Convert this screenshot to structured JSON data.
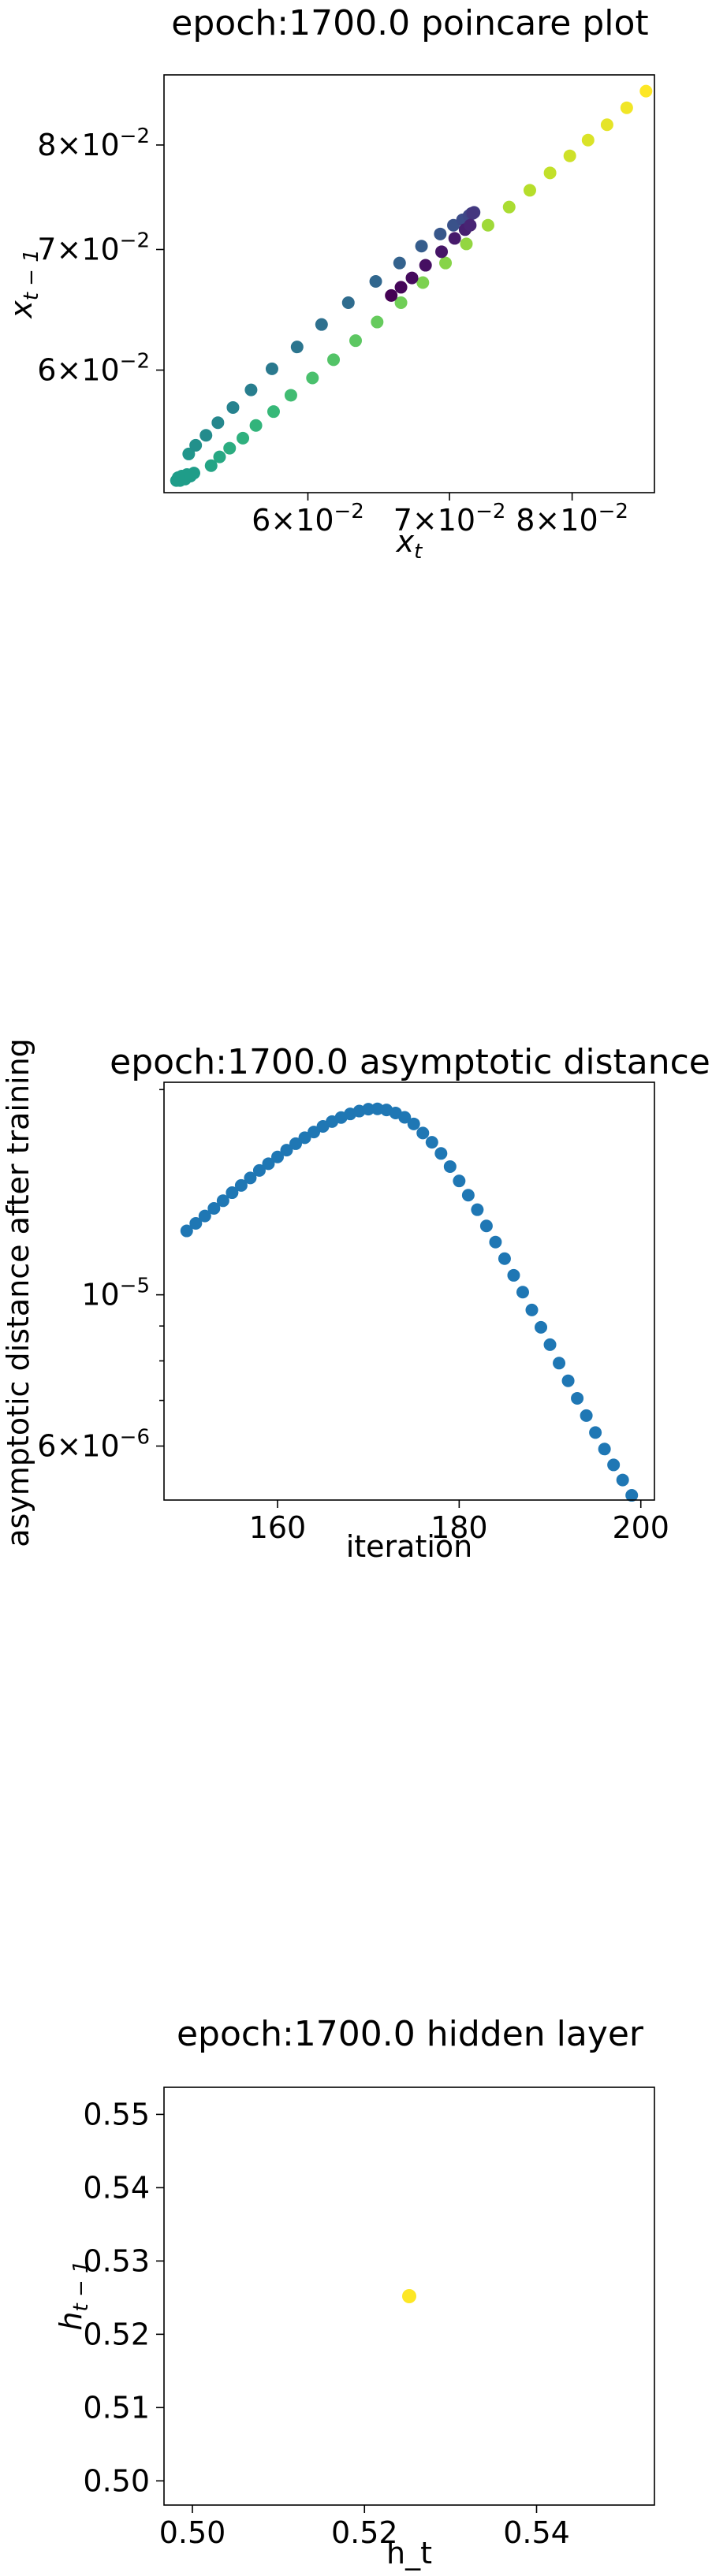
{
  "chart_data": [
    {
      "type": "scatter",
      "title": "epoch:1700.0 poincare plot",
      "xlabel": "x_t",
      "ylabel": "x_{t-1}",
      "xscale": "log",
      "yscale": "log",
      "xlim": [
        0.0513,
        0.0875
      ],
      "ylim": [
        0.0513,
        0.0875
      ],
      "xticks": [
        {
          "v": 0.06,
          "label": "6×10^-2"
        },
        {
          "v": 0.07,
          "label": "7×10^-2"
        },
        {
          "v": 0.08,
          "label": "8×10^-2"
        }
      ],
      "yticks": [
        {
          "v": 0.06,
          "label": "6×10^-2"
        },
        {
          "v": 0.07,
          "label": "7×10^-2"
        },
        {
          "v": 0.08,
          "label": "8×10^-2"
        }
      ],
      "colormap": "viridis",
      "points_lower_branch": [
        [
          0.054,
          0.0531
        ],
        [
          0.0545,
          0.0537
        ],
        [
          0.0551,
          0.0543
        ],
        [
          0.0559,
          0.055
        ],
        [
          0.0567,
          0.0559
        ],
        [
          0.0578,
          0.0569
        ],
        [
          0.0589,
          0.0581
        ],
        [
          0.0603,
          0.0594
        ],
        [
          0.0617,
          0.0608
        ],
        [
          0.0632,
          0.0623
        ],
        [
          0.0647,
          0.0638
        ],
        [
          0.0664,
          0.0654
        ],
        [
          0.068,
          0.0671
        ],
        [
          0.0697,
          0.0688
        ],
        [
          0.0713,
          0.0705
        ],
        [
          0.073,
          0.0722
        ],
        [
          0.0747,
          0.0739
        ],
        [
          0.0764,
          0.0755
        ],
        [
          0.0781,
          0.0772
        ],
        [
          0.0798,
          0.0789
        ],
        [
          0.0814,
          0.0805
        ],
        [
          0.0831,
          0.0821
        ],
        [
          0.0849,
          0.0839
        ],
        [
          0.0867,
          0.0857
        ]
      ],
      "points_upper_branch": [
        [
          0.0527,
          0.0539
        ],
        [
          0.0531,
          0.0545
        ],
        [
          0.0537,
          0.0552
        ],
        [
          0.0544,
          0.0561
        ],
        [
          0.0553,
          0.0572
        ],
        [
          0.0564,
          0.0585
        ],
        [
          0.0577,
          0.0601
        ],
        [
          0.0593,
          0.0618
        ],
        [
          0.0609,
          0.0636
        ],
        [
          0.0627,
          0.0654
        ],
        [
          0.0646,
          0.0672
        ],
        [
          0.0663,
          0.0688
        ],
        [
          0.0679,
          0.0703
        ],
        [
          0.0693,
          0.0714
        ],
        [
          0.0703,
          0.0722
        ],
        [
          0.071,
          0.0727
        ],
        [
          0.0715,
          0.0731
        ],
        [
          0.0717,
          0.0733
        ],
        [
          0.0719,
          0.0734
        ],
        [
          0.0718,
          0.0733
        ]
      ],
      "points_dark_cluster": [
        [
          0.0657,
          0.066
        ],
        [
          0.0664,
          0.0667
        ],
        [
          0.0672,
          0.0675
        ],
        [
          0.0682,
          0.0686
        ],
        [
          0.0694,
          0.0698
        ],
        [
          0.0704,
          0.071
        ],
        [
          0.0712,
          0.0718
        ],
        [
          0.0716,
          0.0722
        ]
      ],
      "points_start_cluster": [
        [
          0.052,
          0.0521
        ],
        [
          0.0521,
          0.0523
        ],
        [
          0.0522,
          0.0521
        ],
        [
          0.0523,
          0.0524
        ],
        [
          0.0525,
          0.0522
        ],
        [
          0.0526,
          0.0525
        ],
        [
          0.0528,
          0.0524
        ],
        [
          0.053,
          0.0526
        ]
      ]
    },
    {
      "type": "scatter",
      "title": "epoch:1700.0 asymptotic distance",
      "xlabel": "iteration",
      "ylabel": "asymptotic distance after training",
      "yscale": "log",
      "xlim": [
        147.5,
        201.5
      ],
      "ylim": [
        5e-06,
        2.05e-05
      ],
      "xticks": [
        {
          "v": 160,
          "label": "160"
        },
        {
          "v": 180,
          "label": "180"
        },
        {
          "v": 200,
          "label": "200"
        }
      ],
      "yticks": [
        {
          "v": 6e-06,
          "label": "6×10^-6"
        },
        {
          "v": 1e-05,
          "label": "10^-5"
        }
      ],
      "color": "#1f77b4",
      "x": [
        150,
        151,
        152,
        153,
        154,
        155,
        156,
        157,
        158,
        159,
        160,
        161,
        162,
        163,
        164,
        165,
        166,
        167,
        168,
        169,
        170,
        171,
        172,
        173,
        174,
        175,
        176,
        177,
        178,
        179,
        180,
        181,
        182,
        183,
        184,
        185,
        186,
        187,
        188,
        189,
        190,
        191,
        192,
        193,
        194,
        195,
        196,
        197,
        198,
        199
      ],
      "y": [
        1.241e-05,
        1.273e-05,
        1.305e-05,
        1.339e-05,
        1.374e-05,
        1.412e-05,
        1.447e-05,
        1.484e-05,
        1.522e-05,
        1.557e-05,
        1.593e-05,
        1.63e-05,
        1.666e-05,
        1.7e-05,
        1.733e-05,
        1.766e-05,
        1.795e-05,
        1.82e-05,
        1.842e-05,
        1.86e-05,
        1.872e-05,
        1.874e-05,
        1.867e-05,
        1.848e-05,
        1.821e-05,
        1.781e-05,
        1.727e-05,
        1.674e-05,
        1.612e-05,
        1.542e-05,
        1.469e-05,
        1.4e-05,
        1.333e-05,
        1.262e-05,
        1.195e-05,
        1.13e-05,
        1.068e-05,
        1.009e-05,
        9.5e-06,
        8.96e-06,
        8.45e-06,
        7.94e-06,
        7.48e-06,
        7.05e-06,
        6.65e-06,
        6.28e-06,
        5.94e-06,
        5.63e-06,
        5.35e-06,
        5.08e-06
      ]
    },
    {
      "type": "scatter",
      "title": "epoch:1700.0 hidden layer",
      "xlabel": "h_t",
      "ylabel": "h_{t-1}",
      "xlim": [
        0.4967,
        0.5537
      ],
      "ylim": [
        0.4967,
        0.5537
      ],
      "xticks": [
        {
          "v": 0.5,
          "label": "0.50"
        },
        {
          "v": 0.52,
          "label": "0.52"
        },
        {
          "v": 0.54,
          "label": "0.54"
        }
      ],
      "yticks": [
        {
          "v": 0.5,
          "label": "0.50"
        },
        {
          "v": 0.51,
          "label": "0.51"
        },
        {
          "v": 0.52,
          "label": "0.52"
        },
        {
          "v": 0.53,
          "label": "0.53"
        },
        {
          "v": 0.54,
          "label": "0.54"
        },
        {
          "v": 0.55,
          "label": "0.55"
        }
      ],
      "color": "#fde725",
      "points": [
        [
          0.5252,
          0.5252
        ]
      ]
    }
  ]
}
